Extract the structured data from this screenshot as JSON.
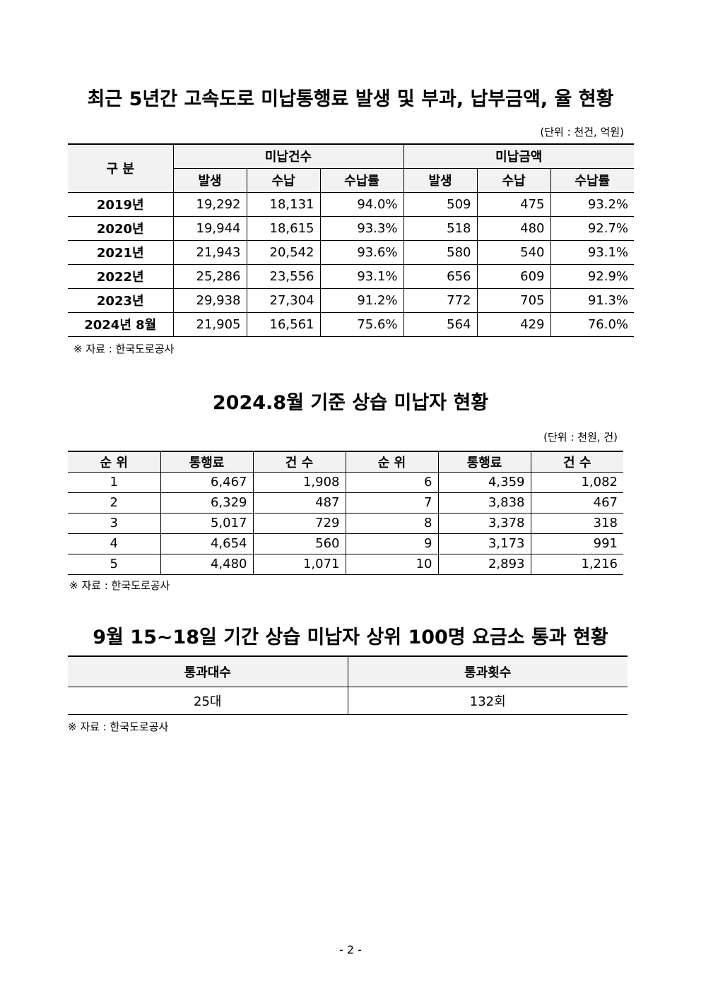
{
  "t1": {
    "title": "최근 5년간 고속도로 미납통행료 발생 및 부과, 납부금액, 율 현황",
    "unit": "(단위 : 천건, 억원)",
    "h_group": "구 분",
    "h_count": "미납건수",
    "h_amount": "미납금액",
    "h_sub": [
      "발생",
      "수납",
      "수납률",
      "발생",
      "수납",
      "수납률"
    ],
    "rows": [
      [
        "2019년",
        "19,292",
        "18,131",
        "94.0%",
        "509",
        "475",
        "93.2%"
      ],
      [
        "2020년",
        "19,944",
        "18,615",
        "93.3%",
        "518",
        "480",
        "92.7%"
      ],
      [
        "2021년",
        "21,943",
        "20,542",
        "93.6%",
        "580",
        "540",
        "93.1%"
      ],
      [
        "2022년",
        "25,286",
        "23,556",
        "93.1%",
        "656",
        "609",
        "92.9%"
      ],
      [
        "2023년",
        "29,938",
        "27,304",
        "91.2%",
        "772",
        "705",
        "91.3%"
      ],
      [
        "2024년 8월",
        "21,905",
        "16,561",
        "75.6%",
        "564",
        "429",
        "76.0%"
      ]
    ],
    "source": "※ 자료 : 한국도로공사"
  },
  "t2": {
    "title": "2024.8월 기준 상습 미납자 현황",
    "unit": "(단위 : 천원, 건)",
    "headers": [
      "순 위",
      "통행료",
      "건 수",
      "순 위",
      "통행료",
      "건 수"
    ],
    "rows": [
      [
        "1",
        "6,467",
        "1,908",
        "6",
        "4,359",
        "1,082"
      ],
      [
        "2",
        "6,329",
        "487",
        "7",
        "3,838",
        "467"
      ],
      [
        "3",
        "5,017",
        "729",
        "8",
        "3,378",
        "318"
      ],
      [
        "4",
        "4,654",
        "560",
        "9",
        "3,173",
        "991"
      ],
      [
        "5",
        "4,480",
        "1,071",
        "10",
        "2,893",
        "1,216"
      ]
    ],
    "source": "※ 자료 : 한국도로공사"
  },
  "t3": {
    "title": "9월 15~18일 기간 상습 미납자 상위 100명 요금소 통과 현황",
    "headers": [
      "통과대수",
      "통과횟수"
    ],
    "values": [
      "25대",
      "132회"
    ],
    "source": "※ 자료 : 한국도로공사"
  },
  "page_number": "- 2 -"
}
